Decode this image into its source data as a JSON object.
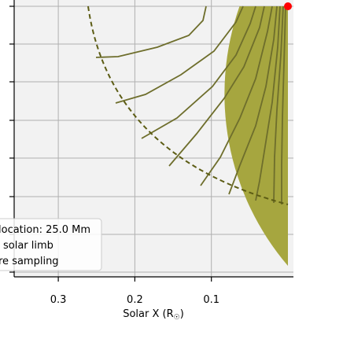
{
  "chart_data": {
    "type": "line",
    "xlabel": "Solar X (R",
    "xlabel_sub": "☉",
    "xlabel_close": ")",
    "x_ticks": [
      0.3,
      0.2,
      0.1
    ],
    "x_tick_labels": [
      "0.3",
      "0.2",
      "0.1"
    ],
    "y_tick_count": 8,
    "xlim": [
      0.357,
      -0.007
    ],
    "solar_limb_radius": 0.345,
    "sampling_radius": 0.261,
    "marker_point": [
      0.0,
      0.345
    ],
    "colors": {
      "disk": "#a6a63f",
      "field_lines": "#6e6e2c",
      "sampling_arc": "#5c5c14",
      "marker": "#ff0000",
      "plot_background": "#f2f2f2",
      "grid": "#b0b0b0"
    },
    "legend": {
      "placement": "bottom-left",
      "entries": [
        "location: 25.0 Mm",
        "solar limb",
        "re sampling"
      ]
    },
    "field_lines": [
      [
        [
          0.259,
          0.345
        ],
        [
          0.255,
          0.327
        ],
        [
          0.242,
          0.295
        ],
        [
          0.21,
          0.262
        ],
        [
          0.16,
          0.226
        ],
        [
          0.113,
          0.208
        ],
        [
          0.085,
          0.2
        ]
      ],
      [
        [
          0.169,
          0.345
        ],
        [
          0.164,
          0.31
        ],
        [
          0.152,
          0.268
        ],
        [
          0.128,
          0.22
        ],
        [
          0.098,
          0.176
        ],
        [
          0.068,
          0.135
        ]
      ],
      [
        [
          0.126,
          0.345
        ],
        [
          0.12,
          0.3
        ],
        [
          0.107,
          0.25
        ],
        [
          0.086,
          0.198
        ],
        [
          0.063,
          0.15
        ],
        [
          0.041,
          0.11
        ]
      ],
      [
        [
          0.101,
          0.345
        ],
        [
          0.096,
          0.3
        ],
        [
          0.086,
          0.255
        ],
        [
          0.07,
          0.21
        ],
        [
          0.052,
          0.165
        ],
        [
          0.03,
          0.118
        ]
      ],
      [
        [
          0.085,
          0.345
        ],
        [
          0.08,
          0.3
        ],
        [
          0.07,
          0.252
        ],
        [
          0.056,
          0.205
        ],
        [
          0.038,
          0.16
        ],
        [
          0.018,
          0.115
        ]
      ],
      [
        [
          0.067,
          0.345
        ],
        [
          0.063,
          0.3
        ],
        [
          0.055,
          0.25
        ],
        [
          0.043,
          0.2
        ],
        [
          0.028,
          0.15
        ],
        [
          0.006,
          0.097
        ]
      ],
      [
        [
          0.057,
          0.345
        ],
        [
          0.052,
          0.29
        ],
        [
          0.044,
          0.235
        ],
        [
          0.034,
          0.185
        ],
        [
          0.022,
          0.14
        ],
        [
          0.008,
          0.094
        ]
      ],
      [
        [
          0.049,
          0.345
        ],
        [
          0.044,
          0.285
        ],
        [
          0.036,
          0.23
        ],
        [
          0.026,
          0.175
        ],
        [
          0.016,
          0.13
        ],
        [
          0.01,
          0.094
        ]
      ],
      [
        [
          0.04,
          0.345
        ],
        [
          0.036,
          0.28
        ],
        [
          0.029,
          0.225
        ],
        [
          0.02,
          0.17
        ],
        [
          0.011,
          0.125
        ],
        [
          0.004,
          0.093
        ]
      ],
      [
        [
          0.018,
          0.345
        ],
        [
          0.016,
          0.275
        ],
        [
          0.013,
          0.21
        ],
        [
          0.01,
          0.15
        ],
        [
          0.006,
          0.1
        ],
        [
          0.003,
          0.085
        ]
      ],
      [
        [
          0.013,
          0.345
        ],
        [
          0.011,
          0.275
        ],
        [
          0.009,
          0.21
        ],
        [
          0.007,
          0.15
        ],
        [
          0.004,
          0.1
        ],
        [
          0.002,
          0.085
        ]
      ],
      [
        [
          0.01,
          0.345
        ],
        [
          0.009,
          0.275
        ],
        [
          0.007,
          0.21
        ],
        [
          0.005,
          0.15
        ],
        [
          0.003,
          0.1
        ],
        [
          0.001,
          0.085
        ]
      ]
    ]
  }
}
